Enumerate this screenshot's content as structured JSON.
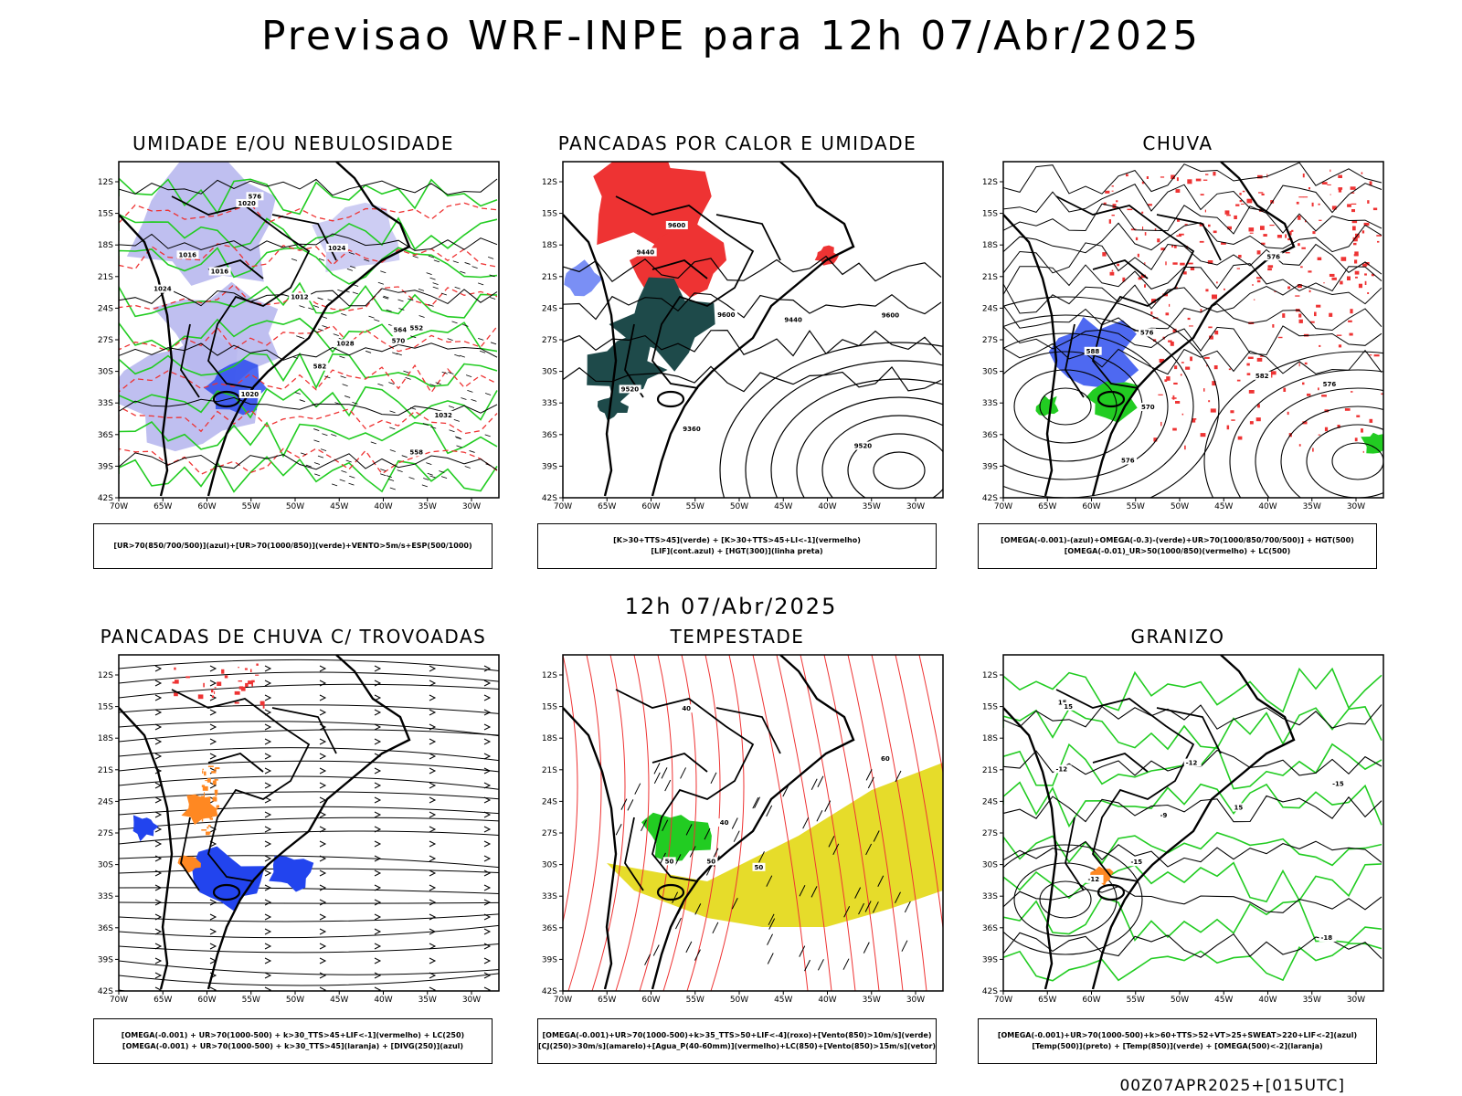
{
  "header": {
    "title": "Previsao WRF-INPE  para 12h 07/Abr/2025"
  },
  "middle_label": "12h 07/Abr/2025",
  "footer_label": "00Z07APR2025+[015UTC]",
  "axes": {
    "lat_ticks": [
      "12S",
      "15S",
      "18S",
      "21S",
      "24S",
      "27S",
      "30S",
      "33S",
      "36S",
      "39S",
      "42S"
    ],
    "lon_ticks": [
      "70W",
      "65W",
      "60W",
      "55W",
      "50W",
      "45W",
      "40W",
      "35W",
      "30W"
    ]
  },
  "colors": {
    "green": "#22cc22",
    "red": "#ee3333",
    "blue": "#2244ee",
    "orange": "#ff8822",
    "yellow": "#e6dc2a",
    "darkteal": "#1e4a4a",
    "lavender": "#b8b8ee",
    "black": "#000000"
  },
  "panels": [
    {
      "title": "UMIDADE E/OU NEBULOSIDADE",
      "legend": [
        "[UR>70(850/700/500)](azul)+[UR>70(1000/850)](verde)+VENTO>5m/s+ESP(500/1000)"
      ],
      "labels": [
        "1016",
        "1016",
        "1012",
        "1020",
        "1020",
        "1024",
        "1024",
        "1028",
        "1032",
        "570",
        "576",
        "564",
        "558",
        "552",
        "582"
      ]
    },
    {
      "title": "PANCADAS POR CALOR E UMIDADE",
      "legend": [
        "[K>30+TTS>45](verde) + [K>30+TTS>45+LI<-1](vermelho)",
        "[LIF](cont.azul) + [HGT(300)](linha preta)"
      ],
      "labels": [
        "9600",
        "9600",
        "9600",
        "9520",
        "9520",
        "9440",
        "9440",
        "9360"
      ]
    },
    {
      "title": "CHUVA",
      "legend": [
        "[OMEGA(-0.001)-(azul)+OMEGA(-0.3)-(verde)+UR>70(1000/850/700/500)] + HGT(500)",
        "[OMEGA(-0.01)_UR>50(1000/850)(vermelho) + LC(500)"
      ],
      "labels": [
        "576",
        "582",
        "576",
        "570",
        "576",
        "576",
        "588"
      ]
    },
    {
      "title": "PANCADAS DE CHUVA C/ TROVOADAS",
      "legend": [
        "[OMEGA(-0.001) + UR>70(1000-500) + k>30_TTS>45+LIF<-1](vermelho) + LC(250)",
        "[OMEGA(-0.001) + UR>70(1000-500) + k>30_TTS>45](laranja) + [DIVG(250)](azul)"
      ],
      "labels": []
    },
    {
      "title": "TEMPESTADE",
      "legend": [
        "[OMEGA(-0.001)+UR>70(1000-500)+k>35_TTS>50+LIF<-4](roxo)+[Vento(850)>10m/s](verde)",
        "[CJ(250)>30m/s](amarelo)+[Agua_P(40-60mm)](vermelho)+LC(850)+[Vento(850)>15m/s](vetor)"
      ],
      "labels": [
        "50",
        "40",
        "50",
        "40",
        "50",
        "60"
      ]
    },
    {
      "title": "GRANIZO",
      "legend": [
        "[OMEGA(-0.001)+UR>70(1000-500)+k>60+TTS>52+VT>25+SWEAT>220+LIF<-2](azul)",
        "[Temp(500)](preto) + [Temp(850)](verde) + [OMEGA(500)<-2](laranja)"
      ],
      "labels": [
        "-9",
        "-12",
        "-12",
        "-15",
        "-15",
        "-12",
        "-18",
        "15",
        "15",
        "15"
      ]
    }
  ]
}
